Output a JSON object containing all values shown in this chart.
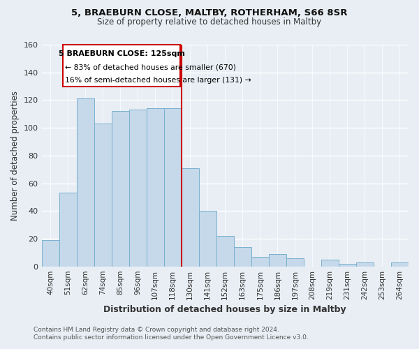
{
  "title1": "5, BRAEBURN CLOSE, MALTBY, ROTHERHAM, S66 8SR",
  "title2": "Size of property relative to detached houses in Maltby",
  "xlabel": "Distribution of detached houses by size in Maltby",
  "ylabel": "Number of detached properties",
  "bar_labels": [
    "40sqm",
    "51sqm",
    "62sqm",
    "74sqm",
    "85sqm",
    "96sqm",
    "107sqm",
    "118sqm",
    "130sqm",
    "141sqm",
    "152sqm",
    "163sqm",
    "175sqm",
    "186sqm",
    "197sqm",
    "208sqm",
    "219sqm",
    "231sqm",
    "242sqm",
    "253sqm",
    "264sqm"
  ],
  "bar_values": [
    19,
    53,
    121,
    103,
    112,
    113,
    114,
    114,
    71,
    40,
    22,
    14,
    7,
    9,
    6,
    0,
    5,
    2,
    3,
    0,
    3
  ],
  "bar_color": "#c5d9ea",
  "bar_edge_color": "#7ab0d0",
  "vline_x_idx": 7.5,
  "vline_color": "#cc0000",
  "annotation_title": "5 BRAEBURN CLOSE: 125sqm",
  "annotation_line1": "← 83% of detached houses are smaller (670)",
  "annotation_line2": "16% of semi-detached houses are larger (131) →",
  "annotation_box_color": "#ffffff",
  "annotation_box_edge": "#cc0000",
  "ylim": [
    0,
    160
  ],
  "yticks": [
    0,
    20,
    40,
    60,
    80,
    100,
    120,
    140,
    160
  ],
  "footer1": "Contains HM Land Registry data © Crown copyright and database right 2024.",
  "footer2": "Contains public sector information licensed under the Open Government Licence v3.0.",
  "bg_color": "#e8eef4",
  "grid_color": "#ffffff",
  "title1_fontsize": 9.5,
  "title2_fontsize": 8.5
}
